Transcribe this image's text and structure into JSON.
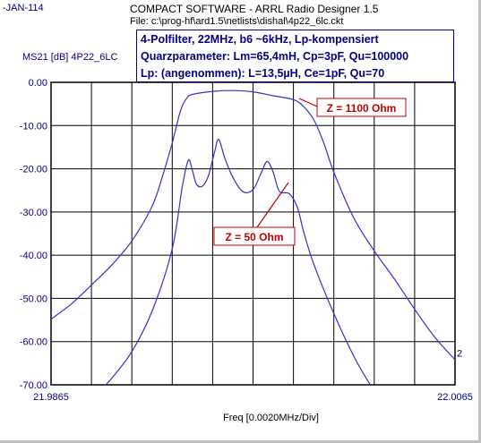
{
  "header": {
    "date": "-JAN-114",
    "title": "COMPACT SOFTWARE - ARRL Radio Designer 1.5",
    "file": "File: c:\\prog-hf\\ard1.5\\netlists\\dishal\\4p22_6lc.ckt"
  },
  "info_box": {
    "line1": "4-Polfilter, 22MHz,  b6 ~6kHz,  Lp-kompensiert",
    "line2": "Quarzparameter: Lm=65,4mH, Cp=3pF, Qu=100000",
    "line3": "Lp: (angenommen): L=13,5µH, Ce=1pF, Qu=70"
  },
  "colors": {
    "trace": "#3030c8",
    "grid": "#000000",
    "axis_text": "#000080",
    "annotation": "#c00000"
  },
  "chart_data": {
    "type": "line",
    "title": "",
    "ylabel": "MS21 [dB] 4P22_6LC",
    "xlabel": "Freq [0.0020MHz/Div]",
    "xlim": [
      21.9865,
      22.0065
    ],
    "ylim": [
      -70.0,
      0.0
    ],
    "x_tick_labels": [
      "21.9865",
      "22.0065"
    ],
    "y_ticks": [
      0,
      -10,
      -20,
      -30,
      -40,
      -50,
      -60,
      -70
    ],
    "y_tick_labels": [
      "0.00",
      "-10.00",
      "-20.00",
      "-30.00",
      "-40.00",
      "-50.00",
      "-60.00",
      "-70.00"
    ],
    "x_divisions": 10,
    "grid": true,
    "trace_marker": "2",
    "series": [
      {
        "annotation": "Z = 1100 Ohm",
        "points": [
          [
            21.9865,
            -54.8
          ],
          [
            21.9875,
            -51.3
          ],
          [
            21.9885,
            -46.9
          ],
          [
            21.9895,
            -42.3
          ],
          [
            21.9905,
            -36.7
          ],
          [
            21.9915,
            -28.7
          ],
          [
            21.992,
            -22.0
          ],
          [
            21.9925,
            -14.0
          ],
          [
            21.9929,
            -6.7
          ],
          [
            21.9932,
            -3.8
          ],
          [
            21.9935,
            -2.8
          ],
          [
            21.9945,
            -2.1
          ],
          [
            21.9955,
            -1.9
          ],
          [
            21.9965,
            -2.2
          ],
          [
            21.9975,
            -3.1
          ],
          [
            21.9985,
            -4.0
          ],
          [
            21.999,
            -5.6
          ],
          [
            21.9995,
            -8.6
          ],
          [
            22.0,
            -14.0
          ],
          [
            22.0005,
            -20.8
          ],
          [
            22.0015,
            -31.5
          ],
          [
            22.0025,
            -39.0
          ],
          [
            22.0035,
            -45.5
          ],
          [
            22.0045,
            -52.5
          ],
          [
            22.0055,
            -59.0
          ],
          [
            22.0065,
            -64.2
          ]
        ]
      },
      {
        "annotation": "Z = 50 Ohm",
        "points": [
          [
            21.9892,
            -70.0
          ],
          [
            21.9895,
            -68.5
          ],
          [
            21.9905,
            -62.3
          ],
          [
            21.9915,
            -53.0
          ],
          [
            21.9925,
            -38.5
          ],
          [
            21.993,
            -24.0
          ],
          [
            21.9933,
            -18.0
          ],
          [
            21.9935,
            -20.5
          ],
          [
            21.9937,
            -23.6
          ],
          [
            21.994,
            -24.0
          ],
          [
            21.9943,
            -21.5
          ],
          [
            21.9946,
            -16.0
          ],
          [
            21.9948,
            -13.2
          ],
          [
            21.9951,
            -17.5
          ],
          [
            21.9955,
            -22.0
          ],
          [
            21.996,
            -25.3
          ],
          [
            21.9965,
            -24.8
          ],
          [
            21.9969,
            -21.0
          ],
          [
            21.9972,
            -18.3
          ],
          [
            21.9975,
            -20.8
          ],
          [
            21.9978,
            -25.2
          ],
          [
            21.9983,
            -25.8
          ],
          [
            21.9987,
            -29.0
          ],
          [
            21.999,
            -34.5
          ],
          [
            21.9995,
            -42.0
          ],
          [
            22.0005,
            -53.5
          ],
          [
            22.0015,
            -63.5
          ],
          [
            22.0023,
            -70.0
          ]
        ]
      }
    ]
  }
}
